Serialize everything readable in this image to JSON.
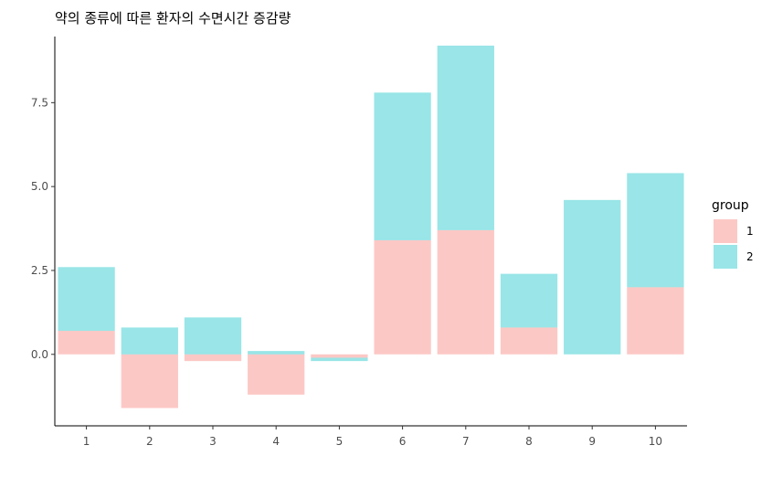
{
  "chart_data": {
    "type": "bar",
    "stacked": true,
    "title": "약의 종류에 따른 환자의 수면시간 증감량",
    "xlabel": "",
    "ylabel": "",
    "categories": [
      "1",
      "2",
      "3",
      "4",
      "5",
      "6",
      "7",
      "8",
      "9",
      "10"
    ],
    "series": [
      {
        "name": "1",
        "color": "#F8766D",
        "values": [
          0.7,
          -1.6,
          -0.2,
          -1.2,
          -0.1,
          3.4,
          3.7,
          0.8,
          0.0,
          2.0
        ]
      },
      {
        "name": "2",
        "color": "#00BFC4",
        "values": [
          1.9,
          0.8,
          1.1,
          0.1,
          -0.1,
          4.4,
          5.5,
          1.6,
          4.6,
          3.4
        ]
      }
    ],
    "yticks": [
      0.0,
      2.5,
      5.0,
      7.5
    ],
    "ytick_labels": [
      "0.0",
      "2.5",
      "5.0",
      "7.5"
    ],
    "ylim": [
      -2.13,
      9.47
    ],
    "legend": {
      "title": "group",
      "position": "right",
      "entries": [
        "1",
        "2"
      ]
    },
    "grid": false,
    "bar_opacity": 0.4
  }
}
